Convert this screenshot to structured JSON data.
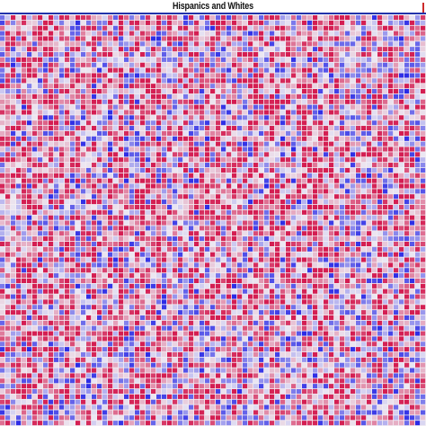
{
  "chart_data": {
    "type": "heatmap",
    "title": "Hispanics and Whites",
    "xlabel": "",
    "ylabel": "",
    "grid": true,
    "legend": "none",
    "color_scale": {
      "low": "#2a2ae6",
      "mid": "#ece8f2",
      "high": "#d41e52"
    },
    "value_range": [
      -1,
      1
    ],
    "n_rows": 78,
    "n_cols": 79,
    "pattern": "pseudo-random expression values, predominantly red/magenta with scattered blue and pale cells",
    "seed": 20231
  }
}
